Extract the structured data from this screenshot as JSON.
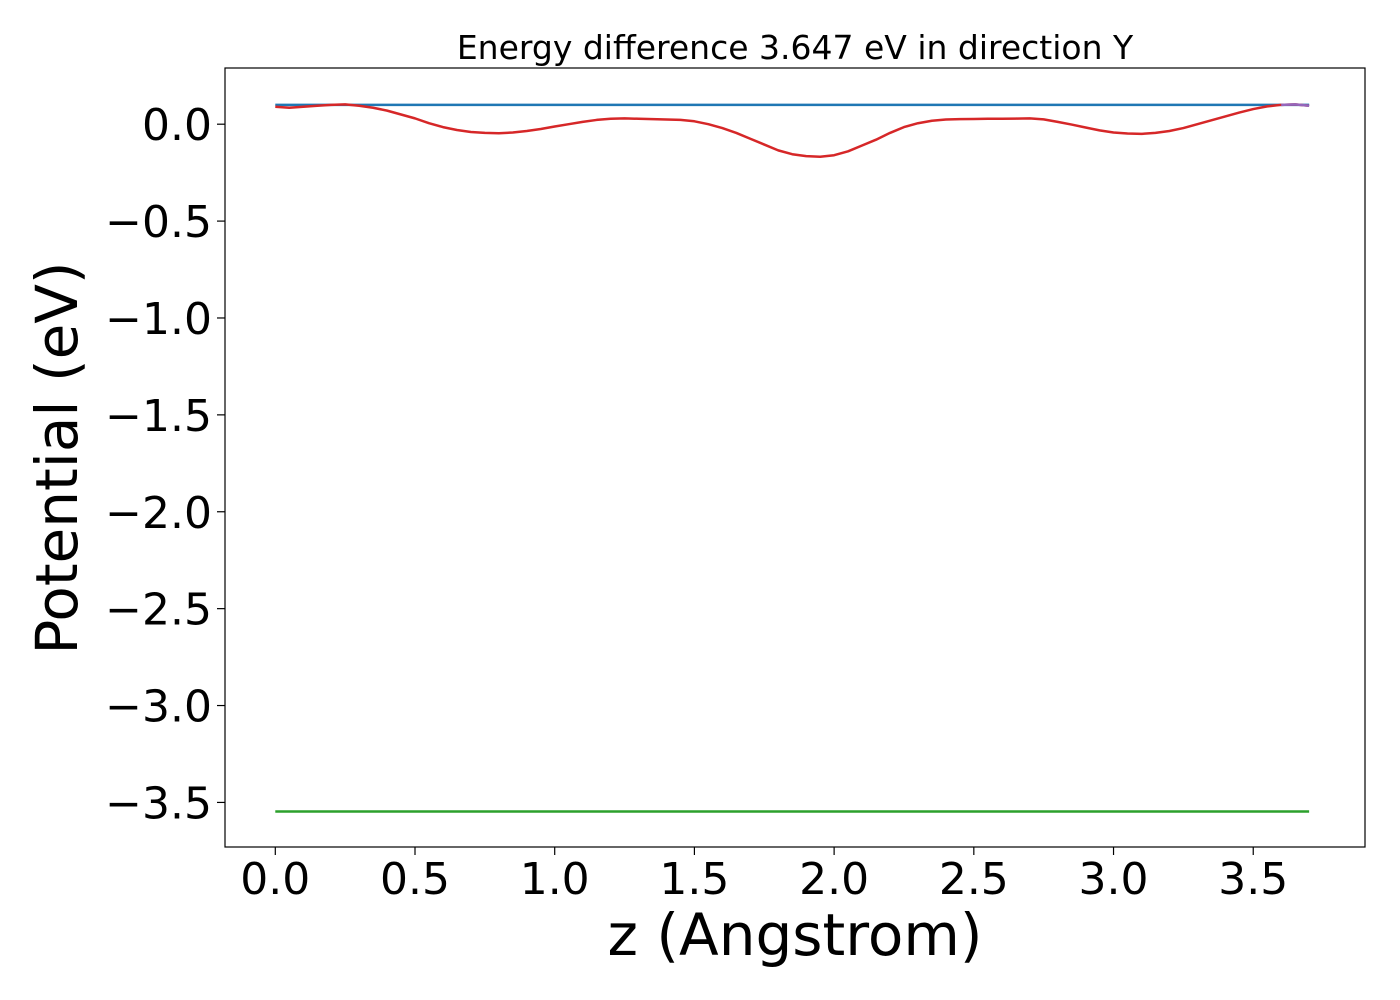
{
  "chart_data": {
    "type": "line",
    "title": "Energy difference 3.647 eV in direction Y",
    "xlabel": "z (Angstrom)",
    "ylabel": "Potential (eV)",
    "xlim": [
      -0.18,
      3.9
    ],
    "ylim": [
      -3.73,
      0.29
    ],
    "x_ticks": [
      0.0,
      0.5,
      1.0,
      1.5,
      2.0,
      2.5,
      3.0,
      3.5
    ],
    "x_tick_labels": [
      "0.0",
      "0.5",
      "1.0",
      "1.5",
      "2.0",
      "2.5",
      "3.0",
      "3.5"
    ],
    "y_ticks": [
      0.0,
      -0.5,
      -1.0,
      -1.5,
      -2.0,
      -2.5,
      -3.0,
      -3.5
    ],
    "y_tick_labels": [
      "0.0",
      "−0.5",
      "−1.0",
      "−1.5",
      "−2.0",
      "−2.5",
      "−3.0",
      "−3.5"
    ],
    "grid": false,
    "series": [
      {
        "color": "#1f77b4",
        "x": [
          0.0,
          3.7
        ],
        "y": [
          0.1,
          0.1
        ]
      },
      {
        "color": "#2ca02c",
        "x": [
          0.0,
          3.7
        ],
        "y": [
          -3.547,
          -3.547
        ]
      },
      {
        "color": "#d62728",
        "x": [
          0.0,
          0.05,
          0.1,
          0.15,
          0.2,
          0.25,
          0.3,
          0.35,
          0.4,
          0.45,
          0.5,
          0.55,
          0.6,
          0.65,
          0.7,
          0.75,
          0.8,
          0.85,
          0.9,
          0.95,
          1.0,
          1.05,
          1.1,
          1.15,
          1.2,
          1.25,
          1.3,
          1.35,
          1.4,
          1.45,
          1.5,
          1.55,
          1.6,
          1.65,
          1.7,
          1.75,
          1.8,
          1.85,
          1.9,
          1.95,
          2.0,
          2.05,
          2.1,
          2.15,
          2.2,
          2.25,
          2.3,
          2.35,
          2.4,
          2.45,
          2.5,
          2.55,
          2.6,
          2.65,
          2.7,
          2.75,
          2.8,
          2.85,
          2.9,
          2.95,
          3.0,
          3.05,
          3.1,
          3.15,
          3.2,
          3.25,
          3.3,
          3.35,
          3.4,
          3.45,
          3.5,
          3.55,
          3.6,
          3.65,
          3.7
        ],
        "y": [
          0.09,
          0.085,
          0.09,
          0.095,
          0.1,
          0.102,
          0.095,
          0.085,
          0.07,
          0.05,
          0.03,
          0.005,
          -0.015,
          -0.03,
          -0.04,
          -0.045,
          -0.047,
          -0.043,
          -0.035,
          -0.025,
          -0.012,
          0.0,
          0.012,
          0.022,
          0.028,
          0.03,
          0.028,
          0.026,
          0.024,
          0.022,
          0.015,
          0.0,
          -0.02,
          -0.045,
          -0.075,
          -0.105,
          -0.135,
          -0.155,
          -0.165,
          -0.168,
          -0.16,
          -0.14,
          -0.11,
          -0.08,
          -0.045,
          -0.015,
          0.005,
          0.018,
          0.024,
          0.026,
          0.027,
          0.028,
          0.028,
          0.029,
          0.03,
          0.025,
          0.012,
          -0.002,
          -0.017,
          -0.032,
          -0.043,
          -0.048,
          -0.05,
          -0.045,
          -0.035,
          -0.02,
          0.0,
          0.02,
          0.04,
          0.06,
          0.078,
          0.092,
          0.1,
          0.102,
          0.095
        ]
      },
      {
        "color": "#9467bd",
        "x": [
          3.6,
          3.65,
          3.7
        ],
        "y": [
          0.1,
          0.102,
          0.095
        ]
      }
    ]
  }
}
